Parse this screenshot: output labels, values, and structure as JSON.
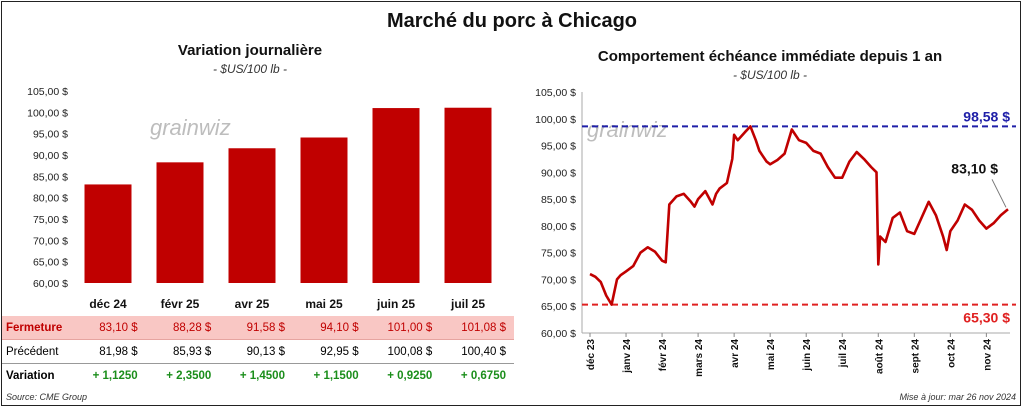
{
  "title": "Marché du porc à Chicago",
  "left": {
    "title": "Variation journalière",
    "unit": "- $US/100 lb -",
    "watermark": "grainwiz",
    "table_labels": {
      "close": "Fermeture",
      "prev": "Précédent",
      "var": "Variation"
    },
    "close_display": [
      "83,10  $",
      "88,28  $",
      "91,58  $",
      "94,10  $",
      "101,00  $",
      "101,08  $"
    ],
    "prev_display": [
      "81,98  $",
      "85,93  $",
      "90,13  $",
      "92,95  $",
      "100,08  $",
      "100,40  $"
    ],
    "var_display": [
      "+ 1,1250",
      "+ 2,3500",
      "+ 1,4500",
      "+ 1,1500",
      "+ 0,9250",
      "+ 0,6750"
    ]
  },
  "right": {
    "title": "Comportement échéance immédiate depuis 1 an",
    "unit": "- $US/100 lb -",
    "watermark": "grainwiz",
    "max_label": "98,58 $",
    "min_label": "65,30 $",
    "last_label": "83,10 $"
  },
  "footer": {
    "source": "Source: CME Group",
    "updated": "Mise à jour: mar 26 nov 2024"
  },
  "colors": {
    "bar": "#c00000",
    "line": "#c00000",
    "max": "#1f1fa8",
    "min": "#e02020",
    "green": "#1b8e1b"
  },
  "chart_data": [
    {
      "type": "bar",
      "title": "Variation journalière",
      "ylabel": "$US/100 lb",
      "categories": [
        "déc 24",
        "févr 25",
        "avr 25",
        "mai 25",
        "juin 25",
        "juil 25"
      ],
      "values": [
        83.1,
        88.28,
        91.58,
        94.1,
        101.0,
        101.08
      ],
      "previous": [
        81.98,
        85.93,
        90.13,
        92.95,
        100.08,
        100.4
      ],
      "change": [
        1.125,
        2.35,
        1.45,
        1.15,
        0.925,
        0.675
      ],
      "ylim": [
        60,
        105
      ],
      "yticks": [
        "60,00 $",
        "65,00 $",
        "70,00 $",
        "75,00 $",
        "80,00 $",
        "85,00 $",
        "90,00 $",
        "95,00 $",
        "100,00 $",
        "105,00 $"
      ]
    },
    {
      "type": "line",
      "title": "Comportement échéance immédiate depuis 1 an",
      "ylabel": "$US/100 lb",
      "ylim": [
        60,
        105
      ],
      "yticks": [
        "60,00 $",
        "65,00 $",
        "70,00 $",
        "75,00 $",
        "80,00 $",
        "85,00 $",
        "90,00 $",
        "95,00 $",
        "100,00 $",
        "105,00 $"
      ],
      "xlabels": [
        "déc 23",
        "janv 24",
        "févr 24",
        "mars 24",
        "avr 24",
        "mai 24",
        "juin 24",
        "juil 24",
        "août 24",
        "sept 24",
        "oct 24",
        "nov 24"
      ],
      "x_month_index": [
        0,
        0.15,
        0.3,
        0.45,
        0.6,
        0.75,
        0.85,
        1,
        1.2,
        1.4,
        1.6,
        1.8,
        2,
        2.1,
        2.2,
        2.4,
        2.6,
        2.8,
        2.9,
        3,
        3.2,
        3.4,
        3.5,
        3.6,
        3.8,
        3.95,
        4,
        4.1,
        4.3,
        4.45,
        4.6,
        4.7,
        4.8,
        4.9,
        5,
        5.2,
        5.4,
        5.6,
        5.8,
        6,
        6.2,
        6.4,
        6.6,
        6.8,
        7,
        7.2,
        7.4,
        7.6,
        7.8,
        7.95,
        8,
        8.05,
        8.2,
        8.4,
        8.6,
        8.8,
        9,
        9.2,
        9.4,
        9.6,
        9.8,
        9.9,
        10,
        10.2,
        10.4,
        10.6,
        10.8,
        11,
        11.2,
        11.4,
        11.6
      ],
      "values": [
        71.0,
        70.5,
        69.5,
        67.0,
        65.3,
        70.0,
        70.8,
        71.5,
        72.5,
        75.0,
        76.0,
        75.2,
        73.5,
        73.2,
        84.0,
        85.5,
        86.0,
        84.5,
        83.6,
        85.0,
        86.5,
        84.0,
        86.0,
        87.0,
        88.0,
        92.5,
        97.0,
        96.0,
        97.5,
        98.58,
        96.0,
        94.0,
        93.0,
        92.0,
        91.5,
        92.3,
        93.5,
        98.0,
        96.0,
        95.5,
        94.0,
        93.5,
        91.0,
        89.0,
        89.0,
        92.0,
        93.8,
        92.5,
        91.0,
        90.0,
        72.8,
        78.0,
        77.0,
        81.5,
        82.5,
        79.0,
        78.5,
        81.5,
        84.5,
        82.0,
        78.0,
        75.5,
        79.0,
        81.0,
        84.0,
        83.0,
        81.0,
        79.5,
        80.5,
        82.0,
        83.1
      ],
      "max_line": 98.58,
      "min_line": 65.3,
      "last": 83.1
    }
  ]
}
